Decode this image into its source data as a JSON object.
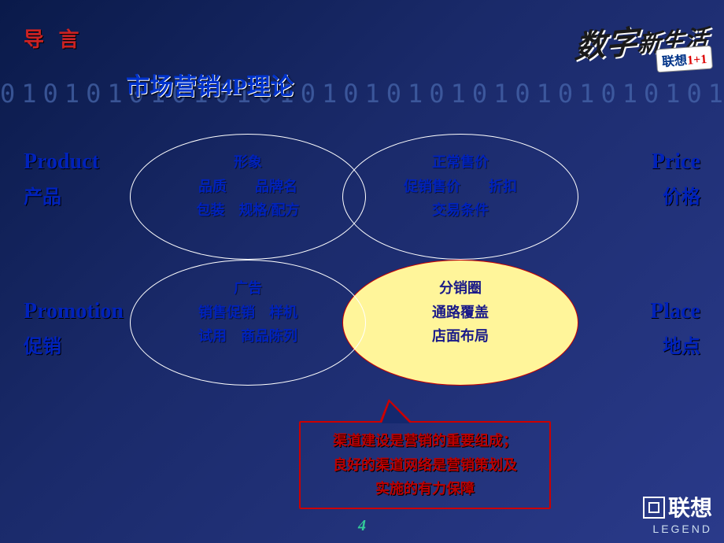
{
  "background_binary": "0101010101010101010101010101010101010101010101",
  "header": "导 言",
  "main_title": "市场营销4P理论",
  "top_right": {
    "big": "数字",
    "sub": "新生活",
    "badge_text": "联想",
    "badge_red": "1+1"
  },
  "labels": {
    "product": {
      "en": "Product",
      "cn": "产品"
    },
    "price": {
      "en": "Price",
      "cn": "价格"
    },
    "promotion": {
      "en": "Promotion",
      "cn": "促销"
    },
    "place": {
      "en": "Place",
      "cn": "地点"
    }
  },
  "ellipses": {
    "product": "形象\n品质　　品牌名\n包装　规格/配方",
    "price": "正常售价\n促销售价　　折扣\n交易条件",
    "promotion": "广告\n销售促销　样机\n试用　商品陈列",
    "place": "分销圈\n通路覆盖\n店面布局"
  },
  "callout": "渠道建设是营销的重要组成；\n良好的渠道网络是营销策划及\n实施的有力保障",
  "page_number": "4",
  "legend_logo": {
    "cn": "联想",
    "en": "LEGEND"
  },
  "style": {
    "bg_gradient_from": "#0a1a4a",
    "bg_gradient_to": "#2a3a8a",
    "binary_color": "#4a6ab0",
    "header_color": "#cc2222",
    "title_color": "#0033cc",
    "label_color": "#0022bb",
    "ellipse_border": "#ffffff",
    "highlight_ellipse_border": "#cc0000",
    "highlight_ellipse_fill": "#fff59a",
    "callout_border": "#cc0000",
    "callout_text": "#bb0000",
    "pagenum_color": "#33cc99",
    "ellipse_w": 300,
    "ellipse_h": 160,
    "title_fontsize": 30,
    "label_en_fontsize": 28,
    "label_cn_fontsize": 24,
    "ellipse_text_fontsize": 18,
    "callout_fontsize": 18
  }
}
